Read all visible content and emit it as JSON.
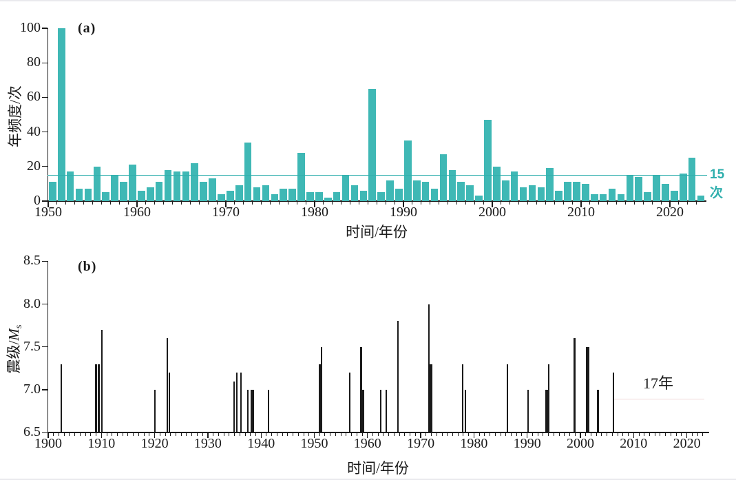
{
  "chart_data": [
    {
      "type": "bar",
      "panel": "a",
      "title": "(a)",
      "xlabel": "时间/年份",
      "ylabel": "年频度/次",
      "year_start": 1950,
      "year_end": 2023,
      "values": [
        11,
        100,
        17,
        7,
        7,
        20,
        5,
        15,
        11,
        21,
        6,
        8,
        11,
        18,
        17,
        17,
        22,
        11,
        13,
        4,
        6,
        9,
        34,
        8,
        9,
        4,
        7,
        7,
        28,
        5,
        5,
        2,
        5,
        15,
        9,
        6,
        65,
        5,
        12,
        7,
        35,
        12,
        11,
        7,
        27,
        18,
        11,
        9,
        3,
        47,
        20,
        12,
        17,
        8,
        9,
        8,
        19,
        6,
        11,
        11,
        10,
        4,
        4,
        7,
        4,
        15,
        14,
        5,
        15,
        10,
        6,
        16,
        25,
        3
      ],
      "ylim": [
        0,
        100
      ],
      "ytick_labels": [
        "0",
        "20",
        "40",
        "60",
        "80",
        "100"
      ],
      "xtick_labels": [
        "1950",
        "1960",
        "1970",
        "1980",
        "1990",
        "2000",
        "2010",
        "2020"
      ],
      "bar_color": "#3FB8B5",
      "grid": false,
      "reference_line": {
        "value": 15,
        "label": "15次",
        "color": "#2FAFAD"
      }
    },
    {
      "type": "scatter",
      "plot_style": "vertical-stems",
      "panel": "b",
      "title": "(b)",
      "xlabel": "时间/年份",
      "ylabel": "震级/Ms",
      "ylabel_parts": {
        "prefix": "震级/",
        "var": "M",
        "sub": "s"
      },
      "xlim": [
        1900,
        2024
      ],
      "ylim": [
        6.5,
        8.5
      ],
      "ytick_labels": [
        "6.5",
        "7.0",
        "7.5",
        "8.0",
        "8.5"
      ],
      "xtick_labels": [
        "1900",
        "1910",
        "1920",
        "1930",
        "1940",
        "1950",
        "1960",
        "1970",
        "1980",
        "1990",
        "2000",
        "2010",
        "2020"
      ],
      "stem_color": "#1A1A1A",
      "points": [
        {
          "year": 1902.5,
          "ms": 7.3
        },
        {
          "year": 1909.0,
          "ms": 7.3
        },
        {
          "year": 1909.5,
          "ms": 7.3
        },
        {
          "year": 1910.1,
          "ms": 7.7
        },
        {
          "year": 1920.0,
          "ms": 7.0
        },
        {
          "year": 1922.4,
          "ms": 7.6
        },
        {
          "year": 1922.8,
          "ms": 7.2
        },
        {
          "year": 1934.9,
          "ms": 7.1
        },
        {
          "year": 1935.4,
          "ms": 7.2
        },
        {
          "year": 1936.2,
          "ms": 7.2
        },
        {
          "year": 1937.5,
          "ms": 7.0
        },
        {
          "year": 1938.4,
          "ms": 7.0,
          "thick": true
        },
        {
          "year": 1941.4,
          "ms": 7.0
        },
        {
          "year": 1951.2,
          "ms": 7.3,
          "thick": true
        },
        {
          "year": 1951.4,
          "ms": 7.5
        },
        {
          "year": 1956.7,
          "ms": 7.2
        },
        {
          "year": 1958.8,
          "ms": 7.5
        },
        {
          "year": 1959.0,
          "ms": 7.0,
          "thick": true
        },
        {
          "year": 1962.5,
          "ms": 7.0
        },
        {
          "year": 1963.5,
          "ms": 7.0
        },
        {
          "year": 1965.7,
          "ms": 7.8
        },
        {
          "year": 1971.5,
          "ms": 8.0
        },
        {
          "year": 1971.9,
          "ms": 7.3,
          "thick": true
        },
        {
          "year": 1977.9,
          "ms": 7.3
        },
        {
          "year": 1978.4,
          "ms": 7.0
        },
        {
          "year": 1986.3,
          "ms": 7.3
        },
        {
          "year": 1990.2,
          "ms": 7.0
        },
        {
          "year": 1993.8,
          "ms": 7.0,
          "thick": true
        },
        {
          "year": 1994.1,
          "ms": 7.3
        },
        {
          "year": 1998.9,
          "ms": 7.6
        },
        {
          "year": 2001.4,
          "ms": 7.5,
          "thick": true
        },
        {
          "year": 2003.3,
          "ms": 7.0
        },
        {
          "year": 2006.2,
          "ms": 7.2
        }
      ],
      "annotation": {
        "label": "17年",
        "gap_line": {
          "from_year": 2006.3,
          "to_year": 2023.3,
          "ms": 6.9,
          "color": "#F0D9D9"
        }
      }
    }
  ]
}
